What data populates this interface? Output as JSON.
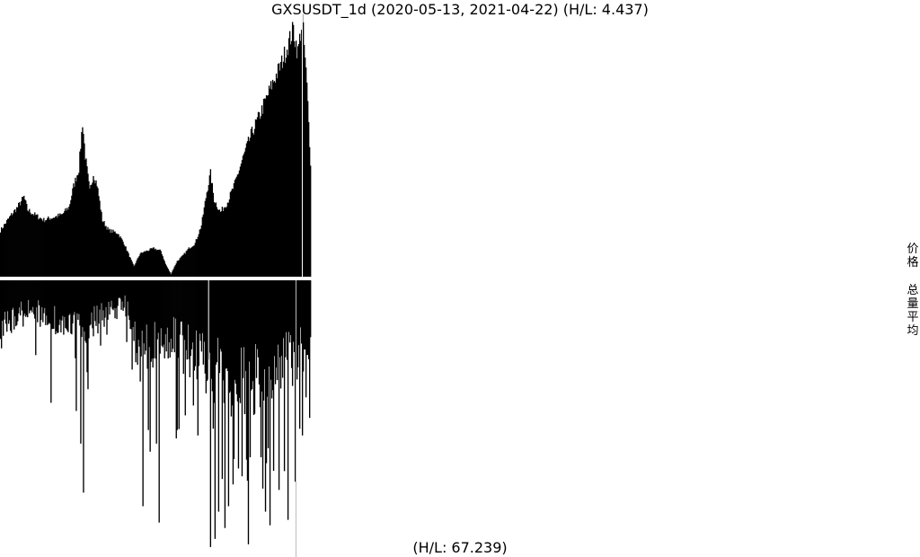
{
  "chart_data": {
    "type": "bar",
    "title": "GXSUSDT_1d (2020-05-13, 2021-04-22) (H/L: 4.437)",
    "bottom_label": "(H/L: 67.239)",
    "side_labels": [
      "价格",
      "总量平均"
    ],
    "start_date": "2020-05-13",
    "end_date": "2021-04-22",
    "bar_color": "#000000",
    "background": "#ffffff",
    "grid": false,
    "legend": "none",
    "series": [
      {
        "name": "价格",
        "direction": "up",
        "anchors": [
          [
            "2020-05-13",
            0.18
          ],
          [
            "2020-05-19",
            0.21
          ],
          [
            "2020-05-25",
            0.24
          ],
          [
            "2020-06-01",
            0.27
          ],
          [
            "2020-06-08",
            0.31
          ],
          [
            "2020-06-12",
            0.26
          ],
          [
            "2020-06-20",
            0.24
          ],
          [
            "2020-06-30",
            0.22
          ],
          [
            "2020-07-10",
            0.23
          ],
          [
            "2020-07-20",
            0.24
          ],
          [
            "2020-07-28",
            0.27
          ],
          [
            "2020-08-02",
            0.35
          ],
          [
            "2020-08-08",
            0.42
          ],
          [
            "2020-08-12",
            0.6
          ],
          [
            "2020-08-15",
            0.47
          ],
          [
            "2020-08-20",
            0.33
          ],
          [
            "2020-08-24",
            0.4
          ],
          [
            "2020-08-28",
            0.36
          ],
          [
            "2020-09-03",
            0.22
          ],
          [
            "2020-09-10",
            0.18
          ],
          [
            "2020-09-20",
            0.17
          ],
          [
            "2020-09-27",
            0.13
          ],
          [
            "2020-10-03",
            0.08
          ],
          [
            "2020-10-08",
            0.04
          ],
          [
            "2020-10-15",
            0.09
          ],
          [
            "2020-10-22",
            0.1
          ],
          [
            "2020-10-30",
            0.11
          ],
          [
            "2020-11-07",
            0.1
          ],
          [
            "2020-11-12",
            0.05
          ],
          [
            "2020-11-18",
            0.01
          ],
          [
            "2020-11-25",
            0.06
          ],
          [
            "2020-12-01",
            0.08
          ],
          [
            "2020-12-08",
            0.11
          ],
          [
            "2020-12-15",
            0.13
          ],
          [
            "2020-12-22",
            0.2
          ],
          [
            "2020-12-28",
            0.33
          ],
          [
            "2021-01-01",
            0.4
          ],
          [
            "2021-01-05",
            0.3
          ],
          [
            "2021-01-12",
            0.25
          ],
          [
            "2021-01-20",
            0.29
          ],
          [
            "2021-01-28",
            0.36
          ],
          [
            "2021-02-05",
            0.45
          ],
          [
            "2021-02-15",
            0.55
          ],
          [
            "2021-02-25",
            0.63
          ],
          [
            "2021-03-05",
            0.7
          ],
          [
            "2021-03-12",
            0.76
          ],
          [
            "2021-03-20",
            0.82
          ],
          [
            "2021-03-28",
            0.9
          ],
          [
            "2021-04-03",
            0.96
          ],
          [
            "2021-04-08",
            0.87
          ],
          [
            "2021-04-13",
            1.0
          ],
          [
            "2021-04-18",
            0.74
          ],
          [
            "2021-04-22",
            0.45
          ]
        ]
      },
      {
        "name": "总量平均",
        "direction": "down",
        "anchors": [
          [
            "2020-05-13",
            0.22
          ],
          [
            "2020-06-01",
            0.13
          ],
          [
            "2020-06-15",
            0.12
          ],
          [
            "2020-07-01",
            0.14
          ],
          [
            "2020-07-20",
            0.18
          ],
          [
            "2020-08-01",
            0.2
          ],
          [
            "2020-08-15",
            0.19
          ],
          [
            "2020-08-28",
            0.16
          ],
          [
            "2020-09-10",
            0.13
          ],
          [
            "2020-09-28",
            0.1
          ],
          [
            "2020-10-15",
            0.3
          ],
          [
            "2020-10-30",
            0.28
          ],
          [
            "2020-11-15",
            0.24
          ],
          [
            "2020-12-01",
            0.25
          ],
          [
            "2020-12-15",
            0.32
          ],
          [
            "2021-01-01",
            0.36
          ],
          [
            "2021-01-20",
            0.4
          ],
          [
            "2021-02-05",
            0.43
          ],
          [
            "2021-02-20",
            0.4
          ],
          [
            "2021-03-10",
            0.36
          ],
          [
            "2021-03-25",
            0.34
          ],
          [
            "2021-04-10",
            0.3
          ],
          [
            "2021-04-22",
            0.25
          ]
        ],
        "spikes": [
          [
            "2020-05-14",
            0.25
          ],
          [
            "2020-06-07",
            0.17
          ],
          [
            "2020-07-08",
            0.45
          ],
          [
            "2020-08-05",
            0.48
          ],
          [
            "2020-08-10",
            0.6
          ],
          [
            "2020-08-13",
            0.78
          ],
          [
            "2020-08-18",
            0.4
          ],
          [
            "2020-09-01",
            0.24
          ],
          [
            "2020-10-18",
            0.83
          ],
          [
            "2020-10-24",
            0.55
          ],
          [
            "2020-11-02",
            0.6
          ],
          [
            "2020-11-05",
            0.89
          ],
          [
            "2020-11-25",
            0.55
          ],
          [
            "2020-12-13",
            0.46
          ],
          [
            "2020-12-18",
            0.57
          ],
          [
            "2021-01-01",
            0.98
          ],
          [
            "2021-01-06",
            0.95
          ],
          [
            "2021-01-10",
            0.85
          ],
          [
            "2021-01-14",
            0.73
          ],
          [
            "2021-01-17",
            0.91
          ],
          [
            "2021-01-21",
            0.83
          ],
          [
            "2021-01-26",
            0.75
          ],
          [
            "2021-02-05",
            0.72
          ],
          [
            "2021-02-14",
            0.65
          ],
          [
            "2021-02-26",
            0.65
          ],
          [
            "2021-03-03",
            0.85
          ],
          [
            "2021-03-08",
            0.9
          ],
          [
            "2021-03-12",
            0.7
          ],
          [
            "2021-03-18",
            0.77
          ],
          [
            "2021-03-28",
            0.88
          ],
          [
            "2021-04-05",
            0.74
          ],
          [
            "2021-04-13",
            0.57
          ],
          [
            "2021-04-17",
            0.43
          ]
        ]
      }
    ],
    "markers": [
      {
        "panel": "price",
        "date": "2021-04-13",
        "color": "#ffffff"
      },
      {
        "panel": "volume",
        "date": "2020-12-30",
        "color": "#ffffff"
      },
      {
        "panel": "volume",
        "date": "2021-04-06",
        "color": "#bbbbbb"
      }
    ]
  }
}
